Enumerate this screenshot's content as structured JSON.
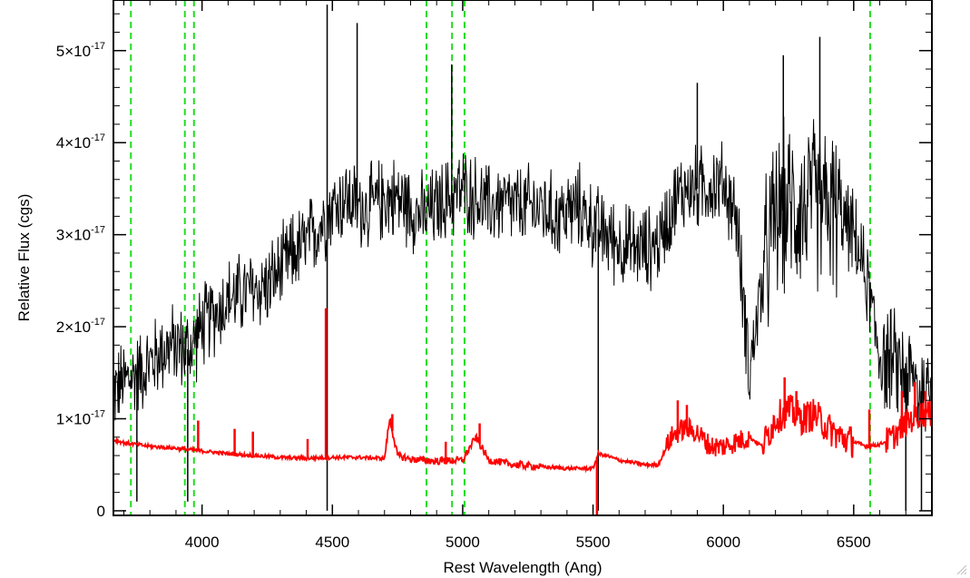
{
  "chart_data": {
    "type": "line",
    "xlabel": "Rest Wavelength (Ang)",
    "ylabel": "Relative Flux (cgs)",
    "xlim": [
      3660,
      6800
    ],
    "ylim": [
      -0.05,
      5.55
    ],
    "y_scale_exponent": -17,
    "x_ticks": [
      4000,
      4500,
      5000,
      5500,
      6000,
      6500
    ],
    "x_tick_labels": [
      "4000",
      "4500",
      "5000",
      "5500",
      "6000",
      "6500"
    ],
    "y_ticks": [
      0,
      1,
      2,
      3,
      4,
      5
    ],
    "y_tick_labels": [
      {
        "mantissa": "0",
        "exponent": ""
      },
      {
        "mantissa": "1×10",
        "exponent": "-17"
      },
      {
        "mantissa": "2×10",
        "exponent": "-17"
      },
      {
        "mantissa": "3×10",
        "exponent": "-17"
      },
      {
        "mantissa": "4×10",
        "exponent": "-17"
      },
      {
        "mantissa": "5×10",
        "exponent": "-17"
      }
    ],
    "grid": false,
    "legend": "none",
    "vertical_lines": [
      3727,
      3934,
      3969,
      4861,
      4959,
      5007,
      6563
    ],
    "series": [
      {
        "color": "#000000",
        "x": [
          3660,
          3700,
          3750,
          3800,
          3850,
          3900,
          3950,
          4000,
          4050,
          4100,
          4150,
          4200,
          4250,
          4300,
          4350,
          4400,
          4450,
          4500,
          4550,
          4600,
          4650,
          4700,
          4750,
          4800,
          4850,
          4900,
          4950,
          5000,
          5050,
          5100,
          5150,
          5200,
          5250,
          5300,
          5350,
          5400,
          5450,
          5500,
          5550,
          5600,
          5650,
          5700,
          5750,
          5800,
          5850,
          5900,
          5950,
          6000,
          6050,
          6100,
          6150,
          6200,
          6250,
          6300,
          6350,
          6400,
          6450,
          6500,
          6550,
          6600,
          6650,
          6700,
          6750,
          6800
        ],
        "y": [
          1.3,
          1.4,
          1.5,
          1.6,
          1.75,
          1.8,
          1.75,
          2.0,
          2.15,
          2.3,
          2.35,
          2.4,
          2.45,
          2.6,
          2.8,
          2.9,
          3.1,
          3.3,
          3.4,
          3.3,
          3.3,
          3.4,
          3.4,
          3.3,
          3.2,
          3.3,
          3.4,
          3.5,
          3.4,
          3.3,
          3.35,
          3.3,
          3.3,
          3.3,
          3.2,
          3.25,
          3.3,
          3.1,
          3.0,
          2.9,
          2.85,
          2.85,
          2.9,
          3.3,
          3.5,
          3.5,
          3.55,
          3.55,
          3.2,
          1.5,
          2.5,
          3.2,
          3.3,
          3.3,
          3.35,
          3.3,
          3.2,
          3.0,
          2.5,
          1.7,
          1.6,
          1.5,
          1.3,
          1.3
        ],
        "spikes": [
          {
            "x": 3750,
            "y": 0.1
          },
          {
            "x": 3945,
            "y": 0.1
          },
          {
            "x": 4480,
            "y": 5.5
          },
          {
            "x": 4480,
            "y": 0.0
          },
          {
            "x": 4595,
            "y": 5.3
          },
          {
            "x": 4958,
            "y": 4.85
          },
          {
            "x": 5520,
            "y": 0.0
          },
          {
            "x": 5900,
            "y": 4.65
          },
          {
            "x": 6230,
            "y": 4.95
          },
          {
            "x": 6370,
            "y": 5.15
          },
          {
            "x": 6700,
            "y": 0.0
          },
          {
            "x": 6760,
            "y": 0.0
          }
        ]
      },
      {
        "color": "#ff0000",
        "x": [
          3660,
          3700,
          3800,
          3900,
          4000,
          4100,
          4200,
          4300,
          4400,
          4500,
          4600,
          4700,
          4720,
          4750,
          4800,
          4900,
          5000,
          5050,
          5100,
          5200,
          5300,
          5400,
          5500,
          5520,
          5550,
          5600,
          5700,
          5750,
          5800,
          5850,
          5900,
          5950,
          6000,
          6050,
          6100,
          6150,
          6200,
          6250,
          6300,
          6350,
          6400,
          6450,
          6500,
          6550,
          6600,
          6650,
          6700,
          6750,
          6800
        ],
        "y": [
          0.77,
          0.74,
          0.7,
          0.68,
          0.65,
          0.62,
          0.6,
          0.58,
          0.57,
          0.58,
          0.58,
          0.57,
          1.0,
          0.6,
          0.56,
          0.54,
          0.55,
          0.8,
          0.55,
          0.5,
          0.48,
          0.46,
          0.46,
          0.62,
          0.6,
          0.55,
          0.5,
          0.5,
          0.8,
          0.9,
          0.85,
          0.7,
          0.7,
          0.75,
          0.8,
          0.7,
          1.0,
          1.1,
          1.0,
          1.05,
          0.9,
          0.8,
          0.75,
          0.7,
          0.72,
          0.8,
          0.95,
          1.05,
          1.05
        ],
        "spikes": [
          {
            "x": 3985,
            "y": 0.98
          },
          {
            "x": 4125,
            "y": 0.89
          },
          {
            "x": 4195,
            "y": 0.86
          },
          {
            "x": 4405,
            "y": 0.78
          },
          {
            "x": 4475,
            "y": 2.2
          },
          {
            "x": 4730,
            "y": 1.05
          },
          {
            "x": 4935,
            "y": 0.75
          },
          {
            "x": 5065,
            "y": 0.95
          },
          {
            "x": 5515,
            "y": -0.05
          },
          {
            "x": 5825,
            "y": 1.2
          },
          {
            "x": 5860,
            "y": 1.15
          },
          {
            "x": 6235,
            "y": 1.45
          },
          {
            "x": 6280,
            "y": 1.3
          },
          {
            "x": 6560,
            "y": 1.1
          },
          {
            "x": 6685,
            "y": 1.3
          },
          {
            "x": 6735,
            "y": 1.4
          },
          {
            "x": 6775,
            "y": 1.3
          }
        ]
      }
    ]
  }
}
